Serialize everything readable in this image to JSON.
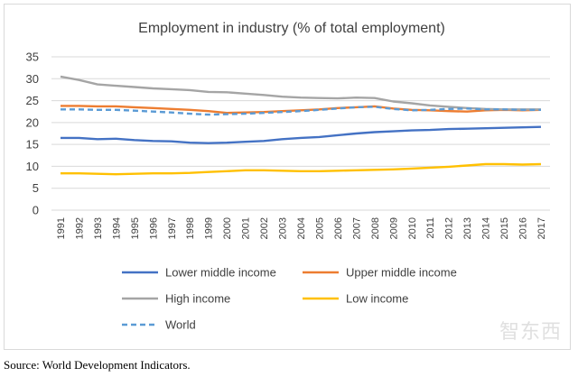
{
  "source_note": "Source: World Development Indicators.",
  "watermark": "智东西",
  "chart_data": {
    "type": "line",
    "title": "Employment in industry (% of total employment)",
    "xlabel": "",
    "ylabel": "",
    "ylim": [
      0,
      35
    ],
    "yticks": [
      0,
      5,
      10,
      15,
      20,
      25,
      30,
      35
    ],
    "grid": true,
    "legend_position": "bottom",
    "x": [
      "1991",
      "1992",
      "1993",
      "1994",
      "1995",
      "1996",
      "1997",
      "1998",
      "1999",
      "2000",
      "2001",
      "2002",
      "2003",
      "2004",
      "2005",
      "2006",
      "2007",
      "2008",
      "2009",
      "2010",
      "2011",
      "2012",
      "2013",
      "2014",
      "2015",
      "2016",
      "2017"
    ],
    "series": [
      {
        "name": "Lower middle income",
        "color": "#4472c4",
        "dash": false,
        "values": [
          16.5,
          16.5,
          16.2,
          16.3,
          16.0,
          15.8,
          15.7,
          15.4,
          15.3,
          15.4,
          15.6,
          15.8,
          16.2,
          16.5,
          16.7,
          17.1,
          17.5,
          17.8,
          18.0,
          18.2,
          18.3,
          18.5,
          18.6,
          18.7,
          18.8,
          18.9,
          19.0
        ]
      },
      {
        "name": "Upper middle income",
        "color": "#ed7d31",
        "dash": false,
        "values": [
          23.8,
          23.8,
          23.7,
          23.7,
          23.5,
          23.3,
          23.1,
          22.9,
          22.6,
          22.2,
          22.3,
          22.4,
          22.6,
          22.8,
          23.0,
          23.3,
          23.5,
          23.7,
          23.2,
          22.9,
          22.8,
          22.6,
          22.5,
          22.8,
          22.9,
          22.8,
          22.9
        ]
      },
      {
        "name": "High income",
        "color": "#a5a5a5",
        "dash": false,
        "values": [
          30.5,
          29.7,
          28.7,
          28.4,
          28.1,
          27.8,
          27.6,
          27.4,
          27.0,
          26.9,
          26.6,
          26.3,
          25.9,
          25.7,
          25.6,
          25.5,
          25.7,
          25.6,
          24.8,
          24.4,
          23.9,
          23.6,
          23.3,
          23.1,
          23.0,
          23.0,
          23.0
        ]
      },
      {
        "name": "Low income",
        "color": "#ffc000",
        "dash": false,
        "values": [
          8.4,
          8.4,
          8.3,
          8.2,
          8.3,
          8.4,
          8.4,
          8.5,
          8.7,
          8.9,
          9.1,
          9.1,
          9.0,
          8.9,
          8.9,
          9.0,
          9.1,
          9.2,
          9.3,
          9.5,
          9.7,
          9.9,
          10.2,
          10.5,
          10.5,
          10.4,
          10.5
        ]
      },
      {
        "name": "World",
        "color": "#5b9bd5",
        "dash": true,
        "values": [
          23.0,
          23.0,
          22.9,
          22.9,
          22.7,
          22.5,
          22.3,
          22.0,
          21.8,
          21.9,
          22.0,
          22.2,
          22.4,
          22.6,
          22.9,
          23.2,
          23.5,
          23.6,
          23.1,
          22.8,
          22.9,
          23.1,
          23.2,
          23.0,
          23.0,
          22.9,
          22.9
        ]
      }
    ]
  }
}
